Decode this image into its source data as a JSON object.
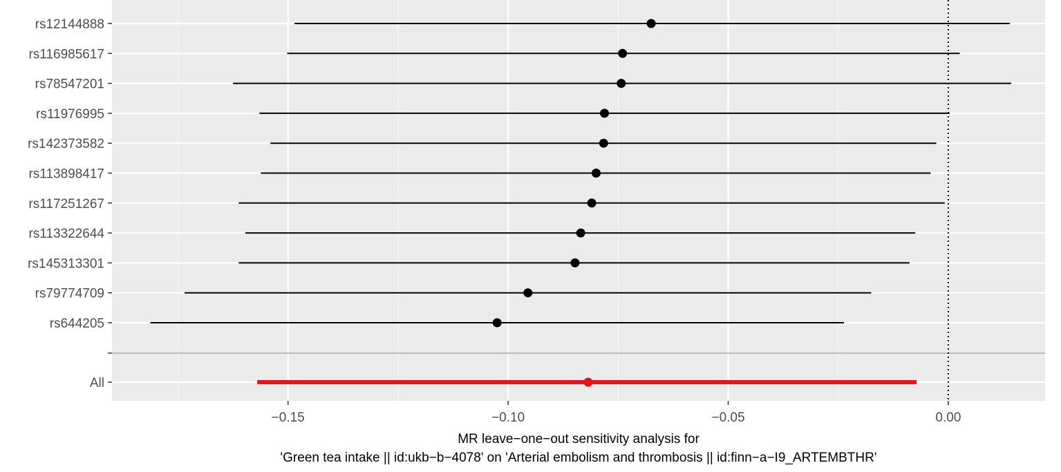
{
  "chart_data": {
    "type": "forest",
    "title": "",
    "xlabel_lines": [
      "MR leave−one−out sensitivity analysis for",
      "'Green tea intake || id:ukb−b−4078' on 'Arterial embolism and thrombosis || id:finn−a−I9_ARTEMBTHR'"
    ],
    "ylabel": "",
    "xlim": [
      -0.19,
      0.022
    ],
    "x_ticks": [
      -0.15,
      -0.1,
      -0.05,
      0.0
    ],
    "x_tick_labels": [
      "−0.15",
      "−0.10",
      "−0.05",
      "0.00"
    ],
    "reference_line": 0.0,
    "grid": true,
    "snps": [
      {
        "label": "rs12144888",
        "estimate": -0.0675,
        "lower": -0.1485,
        "upper": 0.014
      },
      {
        "label": "rs116985617",
        "estimate": -0.074,
        "lower": -0.1502,
        "upper": 0.0026
      },
      {
        "label": "rs78547201",
        "estimate": -0.0743,
        "lower": -0.1625,
        "upper": 0.0143
      },
      {
        "label": "rs11976995",
        "estimate": -0.0781,
        "lower": -0.1565,
        "upper": 0.0003
      },
      {
        "label": "rs142373582",
        "estimate": -0.0783,
        "lower": -0.154,
        "upper": -0.0027
      },
      {
        "label": "rs113898417",
        "estimate": -0.08,
        "lower": -0.1562,
        "upper": -0.004
      },
      {
        "label": "rs117251267",
        "estimate": -0.081,
        "lower": -0.1612,
        "upper": -0.0008
      },
      {
        "label": "rs113322644",
        "estimate": -0.0835,
        "lower": -0.1597,
        "upper": -0.0075
      },
      {
        "label": "rs145313301",
        "estimate": -0.0848,
        "lower": -0.1612,
        "upper": -0.0088
      },
      {
        "label": "rs79774709",
        "estimate": -0.0955,
        "lower": -0.1735,
        "upper": -0.0175
      },
      {
        "label": "rs644205",
        "estimate": -0.1025,
        "lower": -0.1813,
        "upper": -0.0237
      }
    ],
    "overall": {
      "label": "All",
      "estimate": -0.0818,
      "lower": -0.157,
      "upper": -0.0072
    },
    "colors": {
      "panel_background": "#ebebeb",
      "grid_major": "#ffffff",
      "grid_minor": "#f5f5f5",
      "snp": "#000000",
      "overall": "#e8141a",
      "separator": "#bdbdbd",
      "tick_label": "#4d4d4d"
    }
  }
}
